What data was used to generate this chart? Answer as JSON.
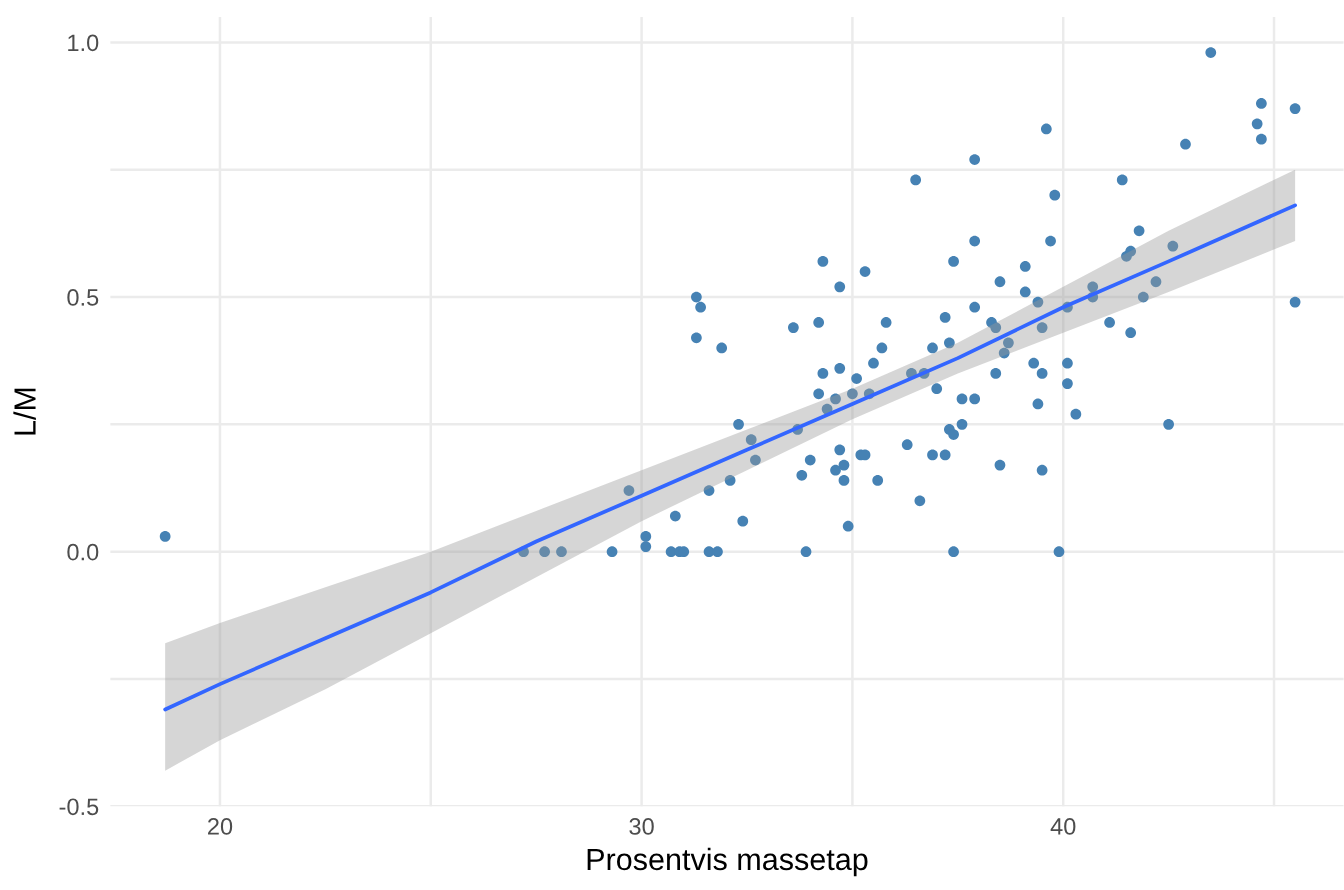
{
  "chart_data": {
    "type": "scatter",
    "xlabel": "Prosentvis massetap",
    "ylabel": "L/M",
    "xlim": [
      17.4,
      46.65
    ],
    "ylim": [
      -0.5,
      1.05
    ],
    "xticks": [
      20,
      {
        "value": 25,
        "label": null
      },
      30,
      {
        "value": 35,
        "label": null
      },
      40,
      {
        "value": 45,
        "label": null
      }
    ],
    "yticks": [
      {
        "value": -0.5,
        "label": "-0.5"
      },
      {
        "value": -0.25,
        "label": null
      },
      {
        "value": 0,
        "label": "0.0"
      },
      {
        "value": 0.25,
        "label": null
      },
      {
        "value": 0.5,
        "label": "0.5"
      },
      {
        "value": 0.75,
        "label": null
      },
      {
        "value": 1,
        "label": "1.0"
      }
    ],
    "grid": true,
    "series": [
      {
        "color": "#4682b4",
        "marker": "circle",
        "x": [
          18.7,
          27.2,
          27.7,
          28.1,
          29.3,
          29.7,
          30.1,
          30.1,
          30.7,
          30.9,
          31.0,
          30.8,
          31.3,
          31.4,
          31.3,
          31.9,
          31.6,
          31.8,
          31.6,
          32.1,
          32.4,
          32.3,
          32.6,
          32.7,
          33.6,
          34.2,
          33.7,
          33.8,
          34.0,
          33.9,
          34.3,
          34.3,
          34.2,
          36.5,
          37.9,
          39.8,
          35.3,
          34.7,
          37.4,
          37.9,
          39.1,
          39.7,
          38.5,
          39.1,
          39.4,
          35.8,
          37.2,
          37.9,
          38.3,
          38.4,
          39.5,
          38.7,
          38.6,
          36.9,
          37.3,
          35.7,
          35.5,
          34.7,
          35.1,
          36.4,
          36.7,
          37.0,
          38.4,
          39.3,
          39.5,
          40.1,
          40.1,
          40.3,
          39.4,
          37.6,
          37.9,
          37.6,
          37.3,
          37.4,
          34.6,
          35.0,
          35.4,
          34.4,
          34.7,
          34.6,
          34.8,
          34.8,
          35.2,
          35.3,
          35.6,
          36.3,
          36.9,
          37.2,
          36.6,
          34.9,
          38.5,
          39.5,
          37.4,
          39.9,
          43.5,
          44.7,
          45.5,
          44.6,
          44.7,
          42.9,
          41.4,
          41.8,
          41.5,
          41.6,
          42.6,
          42.2,
          40.7,
          40.7,
          41.9,
          40.1,
          41.1,
          41.6,
          45.5,
          42.5,
          39.6
        ],
        "values": [
          0.03,
          0,
          0,
          0,
          0,
          0.12,
          0.03,
          0.01,
          0,
          0,
          0,
          0.07,
          0.5,
          0.48,
          0.42,
          0.4,
          0,
          0,
          0.12,
          0.14,
          0.06,
          0.25,
          0.22,
          0.18,
          0.44,
          0.45,
          0.24,
          0.15,
          0.18,
          0,
          0.57,
          0.35,
          0.31,
          0.73,
          0.77,
          0.7,
          0.55,
          0.52,
          0.57,
          0.61,
          0.56,
          0.61,
          0.53,
          0.51,
          0.49,
          0.45,
          0.46,
          0.48,
          0.45,
          0.44,
          0.44,
          0.41,
          0.39,
          0.4,
          0.41,
          0.4,
          0.37,
          0.36,
          0.34,
          0.35,
          0.35,
          0.32,
          0.35,
          0.37,
          0.35,
          0.37,
          0.33,
          0.27,
          0.29,
          0.3,
          0.3,
          0.25,
          0.24,
          0.23,
          0.3,
          0.31,
          0.31,
          0.28,
          0.2,
          0.16,
          0.17,
          0.14,
          0.19,
          0.19,
          0.14,
          0.21,
          0.19,
          0.19,
          0.1,
          0.05,
          0.17,
          0.16,
          0,
          0,
          0.98,
          0.88,
          0.87,
          0.84,
          0.81,
          0.8,
          0.73,
          0.63,
          0.58,
          0.59,
          0.6,
          0.53,
          0.52,
          0.5,
          0.5,
          0.48,
          0.45,
          0.43,
          0.49,
          0.25,
          0.83
        ]
      },
      {
        "type": "line",
        "color": "#3366ff",
        "line_style": "solid",
        "x": [
          18.7,
          20,
          22.5,
          25,
          27.5,
          30,
          32.5,
          35,
          37.5,
          40,
          42.5,
          45.5
        ],
        "values": [
          -0.31,
          -0.26,
          -0.17,
          -0.08,
          0.02,
          0.11,
          0.2,
          0.29,
          0.38,
          0.48,
          0.57,
          0.68
        ],
        "lower": [
          -0.43,
          -0.37,
          -0.27,
          -0.16,
          -0.05,
          0.06,
          0.16,
          0.26,
          0.35,
          0.43,
          0.51,
          0.61
        ],
        "upper": [
          -0.18,
          -0.14,
          -0.07,
          0.0,
          0.08,
          0.16,
          0.24,
          0.32,
          0.41,
          0.52,
          0.63,
          0.75
        ]
      }
    ]
  }
}
